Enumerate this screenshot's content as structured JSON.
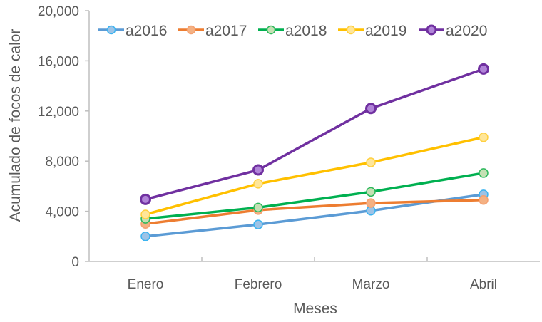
{
  "chart_data": {
    "type": "line",
    "title": "",
    "xlabel": "Meses",
    "ylabel": "Acumulado de focos de calor",
    "categories": [
      "Enero",
      "Febrero",
      "Marzo",
      "Abril"
    ],
    "ylim": [
      0,
      20000
    ],
    "yticks": [
      0,
      4000,
      8000,
      12000,
      16000,
      20000
    ],
    "ytick_labels": [
      "0",
      "4,000",
      "8,000",
      "12,000",
      "16,000",
      "20,000"
    ],
    "legend_position": "top",
    "grid": false,
    "series": [
      {
        "name": "a2016",
        "values": [
          2000,
          2950,
          4050,
          5350
        ],
        "color": "#5B9BD5",
        "marker_fill": "#9DC3E6",
        "marker_edge": "#3BB3F0"
      },
      {
        "name": "a2017",
        "values": [
          3000,
          4100,
          4650,
          4900
        ],
        "color": "#ED7D31",
        "marker_fill": "#F4B183",
        "marker_edge": "#F4A070"
      },
      {
        "name": "a2018",
        "values": [
          3400,
          4300,
          5550,
          7050
        ],
        "color": "#00B050",
        "marker_fill": "#C5E0B4",
        "marker_edge": "#2EB85C"
      },
      {
        "name": "a2019",
        "values": [
          3750,
          6200,
          7900,
          9900
        ],
        "color": "#FFC000",
        "marker_fill": "#FFE699",
        "marker_edge": "#FFD040"
      },
      {
        "name": "a2020",
        "values": [
          4950,
          7300,
          12200,
          15350
        ],
        "color": "#7030A0",
        "marker_fill": "#B084D8",
        "marker_edge": "#7030A0"
      }
    ]
  }
}
